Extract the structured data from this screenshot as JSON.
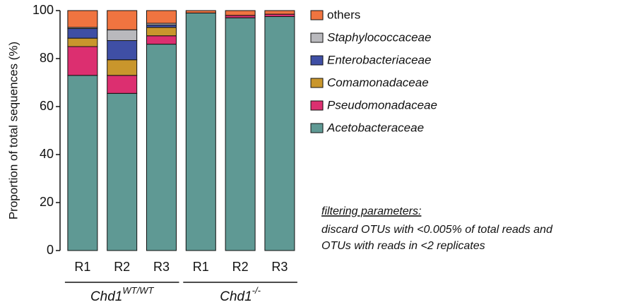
{
  "chart_data": {
    "type": "stacked_bar",
    "ylabel": "Proportion of total sequences (%)",
    "categories": [
      "R1",
      "R2",
      "R3",
      "R1",
      "R2",
      "R3"
    ],
    "groups": [
      {
        "name": "Chd1",
        "sup": "WT/WT",
        "span": [
          0,
          2
        ]
      },
      {
        "name": "Chd1",
        "sup": "-/-",
        "span": [
          3,
          5
        ]
      }
    ],
    "series": [
      {
        "name": "Acetobacteraceae",
        "color": "#5f9994",
        "italic": true,
        "values": [
          73,
          65.5,
          86,
          99,
          97,
          97.5
        ]
      },
      {
        "name": "Pseudomonadaceae",
        "color": "#dc2f70",
        "italic": true,
        "values": [
          12,
          7.5,
          3.5,
          0,
          1,
          1
        ]
      },
      {
        "name": "Comamonadaceae",
        "color": "#c9962c",
        "italic": true,
        "values": [
          3.5,
          6.5,
          3.5,
          0,
          0,
          0
        ]
      },
      {
        "name": "Enterobacteriaceae",
        "color": "#3f4fa5",
        "italic": true,
        "values": [
          4,
          8,
          1,
          0,
          0,
          0
        ]
      },
      {
        "name": "Staphylococcaceae",
        "color": "#b9b9bd",
        "italic": true,
        "values": [
          0.5,
          4.5,
          0.7,
          0,
          0,
          0
        ]
      },
      {
        "name": "others",
        "color": "#f07440",
        "italic": false,
        "values": [
          7,
          8,
          5.3,
          1,
          2,
          1.5
        ]
      }
    ],
    "ylim": [
      0,
      100
    ],
    "yticks": [
      0,
      20,
      40,
      60,
      80,
      100
    ],
    "annotation": {
      "title": "filtering parameters:",
      "lines": [
        "discard OTUs with <0.005% of total reads and",
        "OTUs with reads in <2 replicates"
      ]
    }
  }
}
